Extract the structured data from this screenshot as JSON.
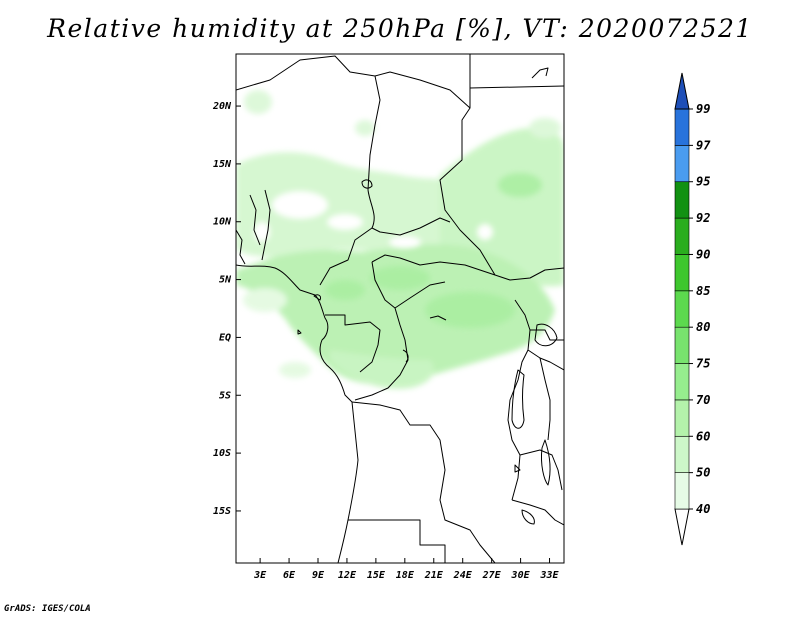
{
  "title": "Relative humidity at 250hPa [%], VT: 2020072521",
  "footer": "GrADS: IGES/COLA",
  "map": {
    "lat_labels": [
      "20N",
      "15N",
      "10N",
      "5N",
      "EQ",
      "5S",
      "10S",
      "15S"
    ],
    "lon_labels": [
      "3E",
      "6E",
      "9E",
      "12E",
      "15E",
      "18E",
      "21E",
      "24E",
      "27E",
      "30E",
      "33E"
    ],
    "lat_range": [
      -19.5,
      24.5
    ],
    "lon_range": [
      0.5,
      34.5
    ]
  },
  "colorbar": {
    "labels": [
      "40",
      "50",
      "60",
      "70",
      "75",
      "80",
      "85",
      "90",
      "92",
      "95",
      "97",
      "99"
    ],
    "colors": [
      "#ffffff",
      "#e6fbe6",
      "#cdf7c9",
      "#b4f2ab",
      "#96ed8e",
      "#78e36e",
      "#5cd94e",
      "#3ec72e",
      "#2aad1e",
      "#129112",
      "#4a9cf0",
      "#2873db",
      "#1e4fb8"
    ]
  }
}
